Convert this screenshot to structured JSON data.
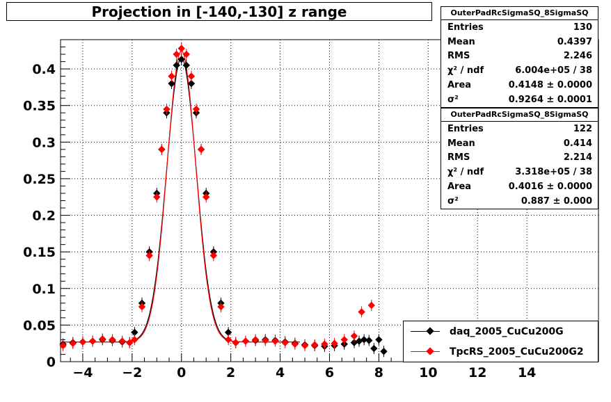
{
  "title": "Projection in [-140,-130] z range",
  "stats_boxes": [
    {
      "name": "OuterPadRcSigmaSQ_8SigmaSQ",
      "rows": [
        {
          "label": "Entries",
          "value": "130"
        },
        {
          "label": "Mean",
          "value": "0.4397"
        },
        {
          "label": "RMS",
          "value": "2.246"
        },
        {
          "label": "χ² / ndf",
          "value": "6.004e+05 / 38"
        },
        {
          "label": "Area",
          "value": "0.4148 ± 0.0000"
        },
        {
          "label": "σ²",
          "value": "0.9264 ± 0.0001"
        }
      ]
    },
    {
      "name": "OuterPadRcSigmaSQ_8SigmaSQ",
      "rows": [
        {
          "label": "Entries",
          "value": "122"
        },
        {
          "label": "Mean",
          "value": "0.414"
        },
        {
          "label": "RMS",
          "value": "2.214"
        },
        {
          "label": "χ² / ndf",
          "value": "3.318e+05 / 38"
        },
        {
          "label": "Area",
          "value": "0.4016 ± 0.0000"
        },
        {
          "label": "σ²",
          "value": "0.887 ± 0.000"
        }
      ]
    }
  ],
  "legend": [
    {
      "label": "daq_2005_CuCu200G",
      "color": "#000000"
    },
    {
      "label": "TpcRS_2005_CuCu200G2",
      "color": "#ff0000"
    }
  ],
  "chart_data": {
    "type": "scatter",
    "title": "Projection in [-140,-130] z range",
    "xlabel": "",
    "ylabel": "",
    "xlim": [
      -4.9,
      16.9
    ],
    "ylim": [
      0,
      0.44
    ],
    "xticks": [
      -4,
      -2,
      0,
      2,
      4,
      6,
      8,
      10,
      12,
      14
    ],
    "yticks": [
      0,
      0.05,
      0.1,
      0.15,
      0.2,
      0.25,
      0.3,
      0.35,
      0.4
    ],
    "ytick_labels": [
      "0",
      "0.05",
      "0.1",
      "0.15",
      "0.2",
      "0.25",
      "0.3",
      "0.35",
      "0.4"
    ],
    "grid": true,
    "peak_model": {
      "amplitude": 0.415,
      "sigma": 0.6,
      "baseline": 0.027
    },
    "series": [
      {
        "name": "daq_2005_CuCu200G",
        "color": "#000000",
        "x": [
          -4.8,
          -4.4,
          -4.0,
          -3.6,
          -3.2,
          -2.8,
          -2.4,
          -2.1,
          -1.9,
          -1.6,
          -1.3,
          -1.0,
          -0.8,
          -0.6,
          -0.4,
          -0.2,
          0.0,
          0.2,
          0.4,
          0.6,
          0.8,
          1.0,
          1.3,
          1.6,
          1.9,
          2.2,
          2.6,
          3.0,
          3.4,
          3.8,
          4.2,
          4.6,
          5.0,
          5.4,
          5.8,
          6.2,
          6.6,
          7.0,
          7.2,
          7.4,
          7.6,
          7.8,
          8.0,
          8.2
        ],
        "y": [
          0.024,
          0.026,
          0.027,
          0.028,
          0.03,
          0.029,
          0.027,
          0.026,
          0.04,
          0.08,
          0.15,
          0.23,
          0.29,
          0.34,
          0.38,
          0.405,
          0.413,
          0.405,
          0.38,
          0.34,
          0.29,
          0.23,
          0.15,
          0.08,
          0.04,
          0.026,
          0.028,
          0.029,
          0.03,
          0.029,
          0.027,
          0.025,
          0.023,
          0.022,
          0.021,
          0.022,
          0.024,
          0.026,
          0.028,
          0.03,
          0.029,
          0.018,
          0.03,
          0.014
        ]
      },
      {
        "name": "TpcRS_2005_CuCu200G2",
        "color": "#ff0000",
        "x": [
          -4.8,
          -4.4,
          -4.0,
          -3.6,
          -3.2,
          -2.8,
          -2.4,
          -2.1,
          -1.9,
          -1.6,
          -1.3,
          -1.0,
          -0.8,
          -0.6,
          -0.4,
          -0.2,
          0.0,
          0.2,
          0.4,
          0.6,
          0.8,
          1.0,
          1.3,
          1.6,
          1.9,
          2.2,
          2.6,
          3.0,
          3.4,
          3.8,
          4.2,
          4.6,
          5.0,
          5.4,
          5.8,
          6.2,
          6.6,
          7.0,
          7.3,
          7.7
        ],
        "y": [
          0.022,
          0.025,
          0.027,
          0.028,
          0.031,
          0.03,
          0.028,
          0.026,
          0.03,
          0.075,
          0.145,
          0.225,
          0.29,
          0.345,
          0.39,
          0.42,
          0.428,
          0.42,
          0.39,
          0.345,
          0.29,
          0.225,
          0.145,
          0.075,
          0.03,
          0.026,
          0.028,
          0.03,
          0.029,
          0.028,
          0.026,
          0.024,
          0.022,
          0.023,
          0.024,
          0.025,
          0.03,
          0.035,
          0.068,
          0.077
        ]
      }
    ]
  }
}
